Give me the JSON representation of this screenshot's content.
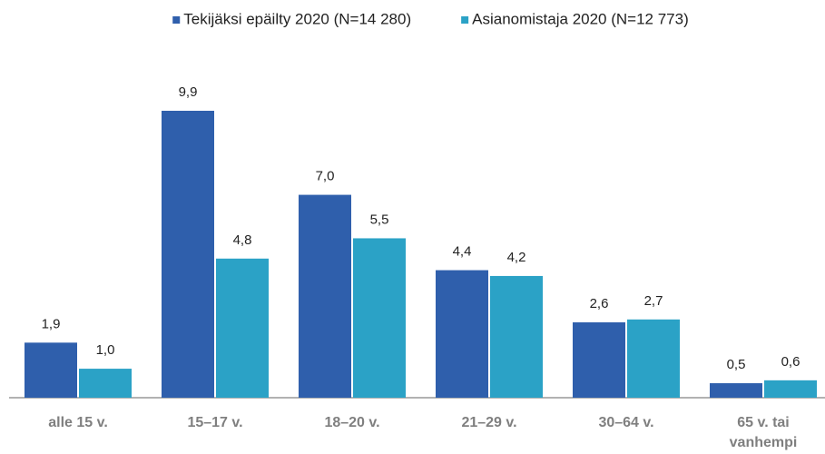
{
  "chart_data": {
    "type": "bar",
    "categories": [
      "alle 15 v.",
      "15–17 v.",
      "18–20 v.",
      "21–29 v.",
      "30–64 v.",
      "65 v. tai vanhempi"
    ],
    "series": [
      {
        "name": "Tekijäksi epäilty 2020 (N=14 280)",
        "color": "#2f5fac",
        "values": [
          1.9,
          9.9,
          7.0,
          4.4,
          2.6,
          0.5
        ],
        "value_labels": [
          "1,9",
          "9,9",
          "7,0",
          "4,4",
          "2,6",
          "0,5"
        ]
      },
      {
        "name": "Asianomistaja 2020 (N=12 773)",
        "color": "#2ba2c6",
        "values": [
          1.0,
          4.8,
          5.5,
          4.2,
          2.7,
          0.6
        ],
        "value_labels": [
          "1,0",
          "4,8",
          "5,5",
          "4,2",
          "2,7",
          "0,6"
        ]
      }
    ],
    "legend": "top"
  }
}
